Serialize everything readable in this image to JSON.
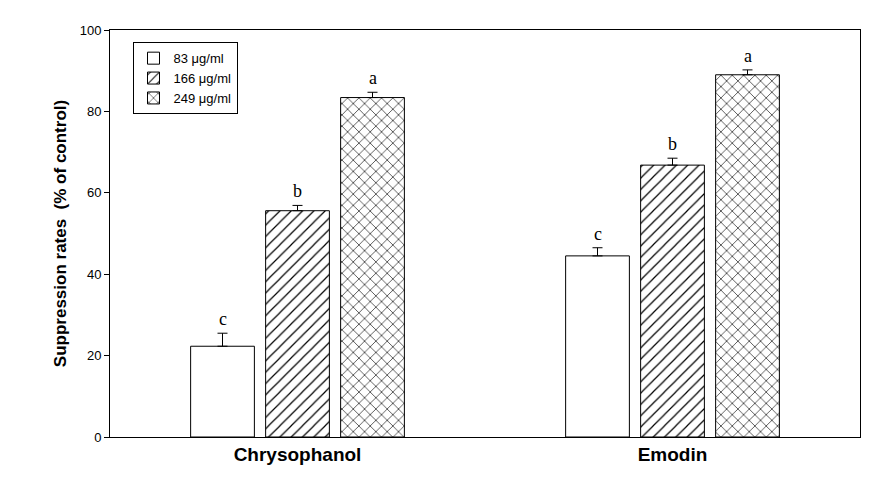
{
  "chart_data": {
    "type": "bar",
    "y_label": "Suppression rates  (% of control)",
    "categories": [
      "Chrysophanol",
      "Emodin"
    ],
    "series": [
      {
        "name": "83 μg/ml",
        "color": "#ffffff",
        "marker": "plain",
        "values": [
          22.3,
          44.5
        ],
        "errors": [
          3.2,
          2.0
        ],
        "annotations": [
          "c",
          "c"
        ]
      },
      {
        "name": "166 μg/ml",
        "color": "#ffffff",
        "marker": "hatch",
        "values": [
          55.6,
          66.8
        ],
        "errors": [
          1.3,
          1.7
        ],
        "annotations": [
          "b",
          "b"
        ]
      },
      {
        "name": "249 μg/ml",
        "color": "#ffffff",
        "marker": "crosshatch",
        "values": [
          83.4,
          89.0
        ],
        "errors": [
          1.3,
          1.2
        ],
        "annotations": [
          "a",
          "a"
        ]
      }
    ],
    "ylim": [
      0,
      100
    ],
    "yticks": [
      0,
      20,
      40,
      60,
      80,
      100
    ],
    "grid": false,
    "legend": "top left"
  }
}
